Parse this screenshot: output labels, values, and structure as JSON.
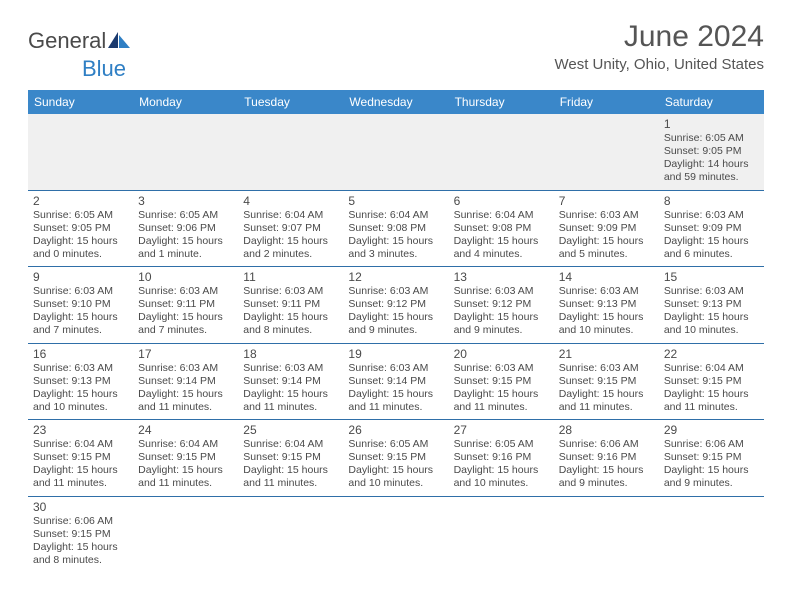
{
  "logo": {
    "text1": "General",
    "text2": "Blue"
  },
  "title": "June 2024",
  "location": "West Unity, Ohio, United States",
  "colors": {
    "header_bg": "#3a87c9",
    "header_text": "#ffffff",
    "rule": "#2f6fa8",
    "text": "#4a4a4a",
    "empty_bg": "#f0f0f0",
    "logo_blue": "#2f7fc4"
  },
  "dayNames": [
    "Sunday",
    "Monday",
    "Tuesday",
    "Wednesday",
    "Thursday",
    "Friday",
    "Saturday"
  ],
  "weeks": [
    [
      null,
      null,
      null,
      null,
      null,
      null,
      {
        "n": "1",
        "sunrise": "6:05 AM",
        "sunset": "9:05 PM",
        "daylight": "14 hours and 59 minutes."
      }
    ],
    [
      {
        "n": "2",
        "sunrise": "6:05 AM",
        "sunset": "9:05 PM",
        "daylight": "15 hours and 0 minutes."
      },
      {
        "n": "3",
        "sunrise": "6:05 AM",
        "sunset": "9:06 PM",
        "daylight": "15 hours and 1 minute."
      },
      {
        "n": "4",
        "sunrise": "6:04 AM",
        "sunset": "9:07 PM",
        "daylight": "15 hours and 2 minutes."
      },
      {
        "n": "5",
        "sunrise": "6:04 AM",
        "sunset": "9:08 PM",
        "daylight": "15 hours and 3 minutes."
      },
      {
        "n": "6",
        "sunrise": "6:04 AM",
        "sunset": "9:08 PM",
        "daylight": "15 hours and 4 minutes."
      },
      {
        "n": "7",
        "sunrise": "6:03 AM",
        "sunset": "9:09 PM",
        "daylight": "15 hours and 5 minutes."
      },
      {
        "n": "8",
        "sunrise": "6:03 AM",
        "sunset": "9:09 PM",
        "daylight": "15 hours and 6 minutes."
      }
    ],
    [
      {
        "n": "9",
        "sunrise": "6:03 AM",
        "sunset": "9:10 PM",
        "daylight": "15 hours and 7 minutes."
      },
      {
        "n": "10",
        "sunrise": "6:03 AM",
        "sunset": "9:11 PM",
        "daylight": "15 hours and 7 minutes."
      },
      {
        "n": "11",
        "sunrise": "6:03 AM",
        "sunset": "9:11 PM",
        "daylight": "15 hours and 8 minutes."
      },
      {
        "n": "12",
        "sunrise": "6:03 AM",
        "sunset": "9:12 PM",
        "daylight": "15 hours and 9 minutes."
      },
      {
        "n": "13",
        "sunrise": "6:03 AM",
        "sunset": "9:12 PM",
        "daylight": "15 hours and 9 minutes."
      },
      {
        "n": "14",
        "sunrise": "6:03 AM",
        "sunset": "9:13 PM",
        "daylight": "15 hours and 10 minutes."
      },
      {
        "n": "15",
        "sunrise": "6:03 AM",
        "sunset": "9:13 PM",
        "daylight": "15 hours and 10 minutes."
      }
    ],
    [
      {
        "n": "16",
        "sunrise": "6:03 AM",
        "sunset": "9:13 PM",
        "daylight": "15 hours and 10 minutes."
      },
      {
        "n": "17",
        "sunrise": "6:03 AM",
        "sunset": "9:14 PM",
        "daylight": "15 hours and 11 minutes."
      },
      {
        "n": "18",
        "sunrise": "6:03 AM",
        "sunset": "9:14 PM",
        "daylight": "15 hours and 11 minutes."
      },
      {
        "n": "19",
        "sunrise": "6:03 AM",
        "sunset": "9:14 PM",
        "daylight": "15 hours and 11 minutes."
      },
      {
        "n": "20",
        "sunrise": "6:03 AM",
        "sunset": "9:15 PM",
        "daylight": "15 hours and 11 minutes."
      },
      {
        "n": "21",
        "sunrise": "6:03 AM",
        "sunset": "9:15 PM",
        "daylight": "15 hours and 11 minutes."
      },
      {
        "n": "22",
        "sunrise": "6:04 AM",
        "sunset": "9:15 PM",
        "daylight": "15 hours and 11 minutes."
      }
    ],
    [
      {
        "n": "23",
        "sunrise": "6:04 AM",
        "sunset": "9:15 PM",
        "daylight": "15 hours and 11 minutes."
      },
      {
        "n": "24",
        "sunrise": "6:04 AM",
        "sunset": "9:15 PM",
        "daylight": "15 hours and 11 minutes."
      },
      {
        "n": "25",
        "sunrise": "6:04 AM",
        "sunset": "9:15 PM",
        "daylight": "15 hours and 11 minutes."
      },
      {
        "n": "26",
        "sunrise": "6:05 AM",
        "sunset": "9:15 PM",
        "daylight": "15 hours and 10 minutes."
      },
      {
        "n": "27",
        "sunrise": "6:05 AM",
        "sunset": "9:16 PM",
        "daylight": "15 hours and 10 minutes."
      },
      {
        "n": "28",
        "sunrise": "6:06 AM",
        "sunset": "9:16 PM",
        "daylight": "15 hours and 9 minutes."
      },
      {
        "n": "29",
        "sunrise": "6:06 AM",
        "sunset": "9:15 PM",
        "daylight": "15 hours and 9 minutes."
      }
    ],
    [
      {
        "n": "30",
        "sunrise": "6:06 AM",
        "sunset": "9:15 PM",
        "daylight": "15 hours and 8 minutes."
      },
      null,
      null,
      null,
      null,
      null,
      null
    ]
  ],
  "labels": {
    "sunrise": "Sunrise: ",
    "sunset": "Sunset: ",
    "daylight": "Daylight: "
  }
}
